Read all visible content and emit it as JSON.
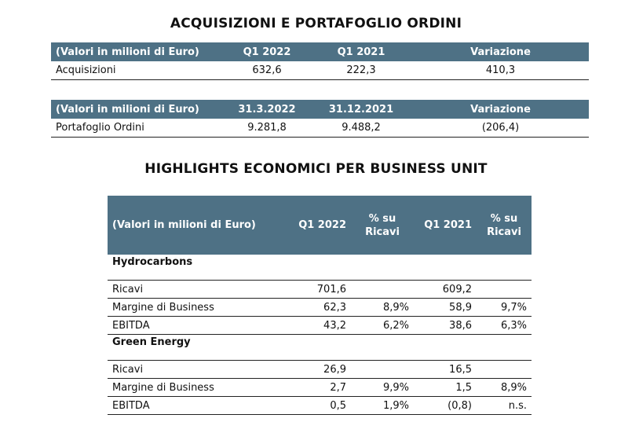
{
  "title1": "ACQUISIZIONI E PORTAFOGLIO ORDINI",
  "table1": {
    "headers": [
      "(Valori in milioni di Euro)",
      "Q1 2022",
      "Q1 2021",
      "Variazione"
    ],
    "row": [
      "Acquisizioni",
      "632,6",
      "222,3",
      "410,3"
    ]
  },
  "table2": {
    "headers": [
      "(Valori in milioni di Euro)",
      "31.3.2022",
      "31.12.2021",
      "Variazione"
    ],
    "row": [
      "Portafoglio Ordini",
      "9.281,8",
      "9.488,2",
      "(206,4)"
    ]
  },
  "title2": "HIGHLIGHTS ECONOMICI PER BUSINESS UNIT",
  "table3": {
    "headers": {
      "label": "(Valori in milioni di Euro)",
      "q1_2022": "Q1 2022",
      "pct1_line1": "% su",
      "pct1_line2": "Ricavi",
      "q1_2021": "Q1 2021",
      "pct2_line1": "% su",
      "pct2_line2": "Ricavi"
    },
    "hydro": {
      "name": "Hydrocarbons",
      "rows": [
        [
          "Ricavi",
          "701,6",
          "",
          "609,2",
          ""
        ],
        [
          "Margine di Business",
          "62,3",
          "8,9%",
          "58,9",
          "9,7%"
        ],
        [
          "EBITDA",
          "43,2",
          "6,2%",
          "38,6",
          "6,3%"
        ]
      ]
    },
    "green": {
      "name": "Green Energy",
      "rows": [
        [
          "Ricavi",
          "26,9",
          "",
          "16,5",
          ""
        ],
        [
          "Margine di Business",
          "2,7",
          "9,9%",
          "1,5",
          "8,9%"
        ],
        [
          "EBITDA",
          "0,5",
          "1,9%",
          "(0,8)",
          "n.s."
        ]
      ]
    }
  }
}
